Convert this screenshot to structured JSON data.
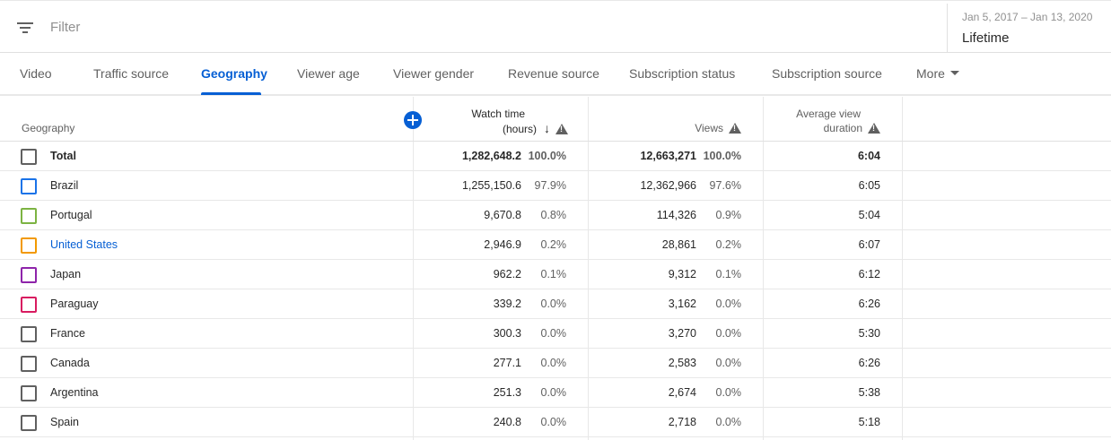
{
  "filter": {
    "placeholder": "Filter"
  },
  "date": {
    "range": "Jan 5, 2017 – Jan 13, 2020",
    "period": "Lifetime"
  },
  "tabs": [
    {
      "label": "Video"
    },
    {
      "label": "Traffic source"
    },
    {
      "label": "Geography"
    },
    {
      "label": "Viewer age"
    },
    {
      "label": "Viewer gender"
    },
    {
      "label": "Revenue source"
    },
    {
      "label": "Subscription status"
    },
    {
      "label": "Subscription source"
    },
    {
      "label": "More"
    }
  ],
  "active_tab": "Geography",
  "table": {
    "headers": {
      "geography": "Geography",
      "watch_time_1": "Watch time",
      "watch_time_2": "(hours)",
      "sort_icon": "↓",
      "views": "Views",
      "avg_view_1": "Average view",
      "avg_view_2": "duration"
    },
    "rows": [
      {
        "country": "Total",
        "watch": "1,282,648.2",
        "watch_pct": "100.0%",
        "views": "12,663,271",
        "views_pct": "100.0%",
        "avg": "6:04",
        "color": "#606060"
      },
      {
        "country": "Brazil",
        "watch": "1,255,150.6",
        "watch_pct": "97.9%",
        "views": "12,362,966",
        "views_pct": "97.6%",
        "avg": "6:05",
        "color": "#1a73e8"
      },
      {
        "country": "Portugal",
        "watch": "9,670.8",
        "watch_pct": "0.8%",
        "views": "114,326",
        "views_pct": "0.9%",
        "avg": "5:04",
        "color": "#7cb342"
      },
      {
        "country": "United States",
        "watch": "2,946.9",
        "watch_pct": "0.2%",
        "views": "28,861",
        "views_pct": "0.2%",
        "avg": "6:07",
        "color": "#f29900"
      },
      {
        "country": "Japan",
        "watch": "962.2",
        "watch_pct": "0.1%",
        "views": "9,312",
        "views_pct": "0.1%",
        "avg": "6:12",
        "color": "#8e24aa"
      },
      {
        "country": "Paraguay",
        "watch": "339.2",
        "watch_pct": "0.0%",
        "views": "3,162",
        "views_pct": "0.0%",
        "avg": "6:26",
        "color": "#d81b60"
      },
      {
        "country": "France",
        "watch": "300.3",
        "watch_pct": "0.0%",
        "views": "3,270",
        "views_pct": "0.0%",
        "avg": "5:30",
        "color": "#606060"
      },
      {
        "country": "Canada",
        "watch": "277.1",
        "watch_pct": "0.0%",
        "views": "2,583",
        "views_pct": "0.0%",
        "avg": "6:26",
        "color": "#606060"
      },
      {
        "country": "Argentina",
        "watch": "251.3",
        "watch_pct": "0.0%",
        "views": "2,674",
        "views_pct": "0.0%",
        "avg": "5:38",
        "color": "#606060"
      },
      {
        "country": "Spain",
        "watch": "240.8",
        "watch_pct": "0.0%",
        "views": "2,718",
        "views_pct": "0.0%",
        "avg": "5:18",
        "color": "#606060"
      }
    ]
  },
  "colors": {
    "accent": "#065fd4",
    "warning_icon": "#606060"
  }
}
